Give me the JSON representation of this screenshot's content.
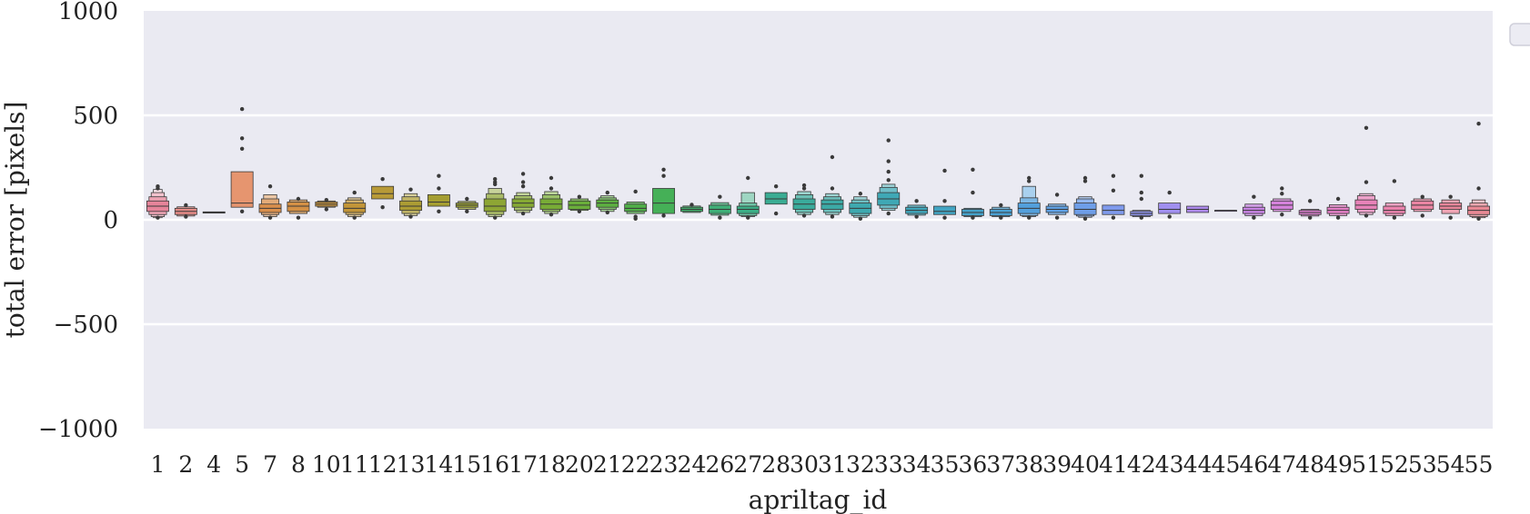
{
  "chart_data": {
    "type": "boxen",
    "xlabel": "apriltag_id",
    "ylabel": "total error [pixels]",
    "ylim": [
      -1000,
      1000
    ],
    "yticks": [
      -1000,
      -500,
      0,
      500,
      1000
    ],
    "ytick_labels": [
      "−1000",
      "−500",
      "0",
      "500",
      "1000"
    ],
    "grid": true,
    "legend": "top-right, empty",
    "background": "#eaeaf2",
    "categories": [
      "1",
      "2",
      "4",
      "5",
      "7",
      "8",
      "10",
      "11",
      "12",
      "13",
      "14",
      "15",
      "16",
      "17",
      "18",
      "20",
      "21",
      "22",
      "23",
      "24",
      "26",
      "27",
      "28",
      "30",
      "31",
      "32",
      "33",
      "34",
      "35",
      "36",
      "37",
      "38",
      "39",
      "40",
      "41",
      "42",
      "43",
      "44",
      "45",
      "46",
      "47",
      "48",
      "49",
      "51",
      "52",
      "53",
      "54",
      "55"
    ],
    "series": [
      {
        "category": "1",
        "color": "#e5849a",
        "median": 65,
        "q1": 40,
        "q3": 90,
        "outer": [
          [
            25,
            110
          ],
          [
            15,
            130
          ],
          [
            10,
            145
          ]
        ],
        "outliers": [
          160,
          150,
          10
        ]
      },
      {
        "category": "2",
        "color": "#e48a86",
        "median": 40,
        "q1": 25,
        "q3": 55,
        "outer": [
          [
            18,
            62
          ]
        ],
        "outliers": [
          70,
          15
        ]
      },
      {
        "category": "4",
        "color": "#d98f5c",
        "median": 35,
        "q1": 32,
        "q3": 38,
        "outer": [],
        "outliers": []
      },
      {
        "category": "5",
        "color": "#e6956f",
        "median": 80,
        "q1": 60,
        "q3": 230,
        "outer": [],
        "outliers": [
          530,
          390,
          340,
          40
        ]
      },
      {
        "category": "7",
        "color": "#d98f4c",
        "median": 55,
        "q1": 35,
        "q3": 75,
        "outer": [
          [
            25,
            100
          ],
          [
            15,
            120
          ]
        ],
        "outliers": [
          160,
          10
        ]
      },
      {
        "category": "8",
        "color": "#d49045",
        "median": 65,
        "q1": 40,
        "q3": 85,
        "outer": [
          [
            30,
            95
          ]
        ],
        "outliers": [
          100,
          10
        ]
      },
      {
        "category": "10",
        "color": "#c8953c",
        "median": 75,
        "q1": 65,
        "q3": 85,
        "outer": [
          [
            60,
            90
          ]
        ],
        "outliers": [
          95,
          50
        ]
      },
      {
        "category": "11",
        "color": "#c29538",
        "median": 55,
        "q1": 35,
        "q3": 80,
        "outer": [
          [
            25,
            95
          ],
          [
            15,
            105
          ]
        ],
        "outliers": [
          130,
          10
        ]
      },
      {
        "category": "12",
        "color": "#b89a37",
        "median": 125,
        "q1": 100,
        "q3": 160,
        "outer": [],
        "outliers": [
          195,
          60
        ]
      },
      {
        "category": "13",
        "color": "#ac9c34",
        "median": 65,
        "q1": 45,
        "q3": 90,
        "outer": [
          [
            30,
            110
          ],
          [
            20,
            125
          ]
        ],
        "outliers": [
          145,
          15
        ]
      },
      {
        "category": "14",
        "color": "#a59e32",
        "median": 85,
        "q1": 65,
        "q3": 120,
        "outer": [],
        "outliers": [
          210,
          150,
          40
        ]
      },
      {
        "category": "15",
        "color": "#9ba134",
        "median": 70,
        "q1": 60,
        "q3": 80,
        "outer": [
          [
            50,
            88
          ]
        ],
        "outliers": [
          100,
          40
        ]
      },
      {
        "category": "16",
        "color": "#8ea634",
        "median": 65,
        "q1": 40,
        "q3": 100,
        "outer": [
          [
            25,
            125
          ],
          [
            15,
            150
          ]
        ],
        "outliers": [
          195,
          180,
          170,
          10
        ]
      },
      {
        "category": "17",
        "color": "#86a934",
        "median": 80,
        "q1": 60,
        "q3": 100,
        "outer": [
          [
            45,
            115
          ],
          [
            35,
            130
          ]
        ],
        "outliers": [
          220,
          180,
          160,
          30
        ]
      },
      {
        "category": "18",
        "color": "#78ac36",
        "median": 75,
        "q1": 50,
        "q3": 100,
        "outer": [
          [
            40,
            120
          ],
          [
            30,
            135
          ]
        ],
        "outliers": [
          200,
          150,
          25
        ]
      },
      {
        "category": "20",
        "color": "#6aae3a",
        "median": 70,
        "q1": 50,
        "q3": 90,
        "outer": [
          [
            45,
            100
          ]
        ],
        "outliers": [
          110,
          40
        ]
      },
      {
        "category": "21",
        "color": "#5db041",
        "median": 80,
        "q1": 60,
        "q3": 95,
        "outer": [
          [
            50,
            105
          ],
          [
            40,
            115
          ]
        ],
        "outliers": [
          130,
          35
        ]
      },
      {
        "category": "22",
        "color": "#50b049",
        "median": 55,
        "q1": 40,
        "q3": 75,
        "outer": [
          [
            30,
            85
          ]
        ],
        "outliers": [
          135,
          15,
          5
        ]
      },
      {
        "category": "23",
        "color": "#45b057",
        "median": 80,
        "q1": 30,
        "q3": 150,
        "outer": [],
        "outliers": [
          240,
          210,
          20
        ]
      },
      {
        "category": "24",
        "color": "#40ae6a",
        "median": 50,
        "q1": 40,
        "q3": 60,
        "outer": [
          [
            35,
            66
          ]
        ],
        "outliers": [
          72
        ]
      },
      {
        "category": "26",
        "color": "#3fae77",
        "median": 50,
        "q1": 30,
        "q3": 70,
        "outer": [
          [
            22,
            82
          ]
        ],
        "outliers": [
          110,
          10
        ]
      },
      {
        "category": "27",
        "color": "#3cad85",
        "median": 50,
        "q1": 30,
        "q3": 65,
        "outer": [
          [
            20,
            80
          ],
          [
            15,
            130
          ]
        ],
        "outliers": [
          200,
          10
        ]
      },
      {
        "category": "28",
        "color": "#3aac93",
        "median": 100,
        "q1": 75,
        "q3": 130,
        "outer": [],
        "outliers": [
          160,
          30
        ]
      },
      {
        "category": "30",
        "color": "#3aab9c",
        "median": 75,
        "q1": 50,
        "q3": 100,
        "outer": [
          [
            35,
            120
          ],
          [
            25,
            135
          ]
        ],
        "outliers": [
          165,
          150,
          20
        ]
      },
      {
        "category": "31",
        "color": "#3caaa6",
        "median": 75,
        "q1": 50,
        "q3": 95,
        "outer": [
          [
            35,
            110
          ],
          [
            25,
            125
          ]
        ],
        "outliers": [
          300,
          150,
          15
        ]
      },
      {
        "category": "32",
        "color": "#3ea9af",
        "median": 55,
        "q1": 30,
        "q3": 80,
        "outer": [
          [
            20,
            95
          ],
          [
            12,
            110
          ]
        ],
        "outliers": [
          125,
          5
        ]
      },
      {
        "category": "33",
        "color": "#3fa8b5",
        "median": 100,
        "q1": 70,
        "q3": 130,
        "outer": [
          [
            55,
            155
          ],
          [
            45,
            170
          ]
        ],
        "outliers": [
          380,
          280,
          230,
          190,
          30
        ]
      },
      {
        "category": "34",
        "color": "#40a6bb",
        "median": 45,
        "q1": 30,
        "q3": 60,
        "outer": [
          [
            22,
            70
          ]
        ],
        "outliers": [
          90,
          15
        ]
      },
      {
        "category": "35",
        "color": "#42a4c2",
        "median": 40,
        "q1": 25,
        "q3": 65,
        "outer": [],
        "outliers": [
          235,
          90,
          10
        ]
      },
      {
        "category": "36",
        "color": "#45a2ca",
        "median": 35,
        "q1": 20,
        "q3": 50,
        "outer": [
          [
            15,
            55
          ]
        ],
        "outliers": [
          240,
          130,
          10
        ]
      },
      {
        "category": "37",
        "color": "#4aa0d2",
        "median": 35,
        "q1": 20,
        "q3": 50,
        "outer": [
          [
            15,
            60
          ]
        ],
        "outliers": [
          70,
          10
        ]
      },
      {
        "category": "38",
        "color": "#53a0dc",
        "median": 55,
        "q1": 30,
        "q3": 80,
        "outer": [
          [
            20,
            105
          ],
          [
            15,
            160
          ]
        ],
        "outliers": [
          200,
          185,
          10
        ]
      },
      {
        "category": "39",
        "color": "#5fa0e3",
        "median": 50,
        "q1": 35,
        "q3": 65,
        "outer": [
          [
            25,
            75
          ]
        ],
        "outliers": [
          120,
          10
        ]
      },
      {
        "category": "40",
        "color": "#6e9ee8",
        "median": 50,
        "q1": 25,
        "q3": 80,
        "outer": [
          [
            18,
            100
          ],
          [
            12,
            110
          ]
        ],
        "outliers": [
          200,
          185,
          5
        ]
      },
      {
        "category": "41",
        "color": "#7f9aec",
        "median": 45,
        "q1": 25,
        "q3": 70,
        "outer": [],
        "outliers": [
          210,
          140,
          10
        ]
      },
      {
        "category": "42",
        "color": "#8f95ed",
        "median": 30,
        "q1": 20,
        "q3": 40,
        "outer": [
          [
            15,
            45
          ]
        ],
        "outliers": [
          210,
          130,
          100,
          10
        ]
      },
      {
        "category": "43",
        "color": "#a08fee",
        "median": 50,
        "q1": 30,
        "q3": 80,
        "outer": [],
        "outliers": [
          130,
          15
        ]
      },
      {
        "category": "44",
        "color": "#ae8aee",
        "median": 50,
        "q1": 35,
        "q3": 65,
        "outer": [],
        "outliers": []
      },
      {
        "category": "45",
        "color": "#bb86ec",
        "median": 45,
        "q1": 45,
        "q3": 45,
        "outer": [],
        "outliers": []
      },
      {
        "category": "46",
        "color": "#c884e4",
        "median": 45,
        "q1": 30,
        "q3": 60,
        "outer": [
          [
            20,
            75
          ]
        ],
        "outliers": [
          110,
          10
        ]
      },
      {
        "category": "47",
        "color": "#d582dc",
        "median": 70,
        "q1": 50,
        "q3": 90,
        "outer": [
          [
            40,
            100
          ]
        ],
        "outliers": [
          150,
          125,
          25
        ]
      },
      {
        "category": "48",
        "color": "#de80d2",
        "median": 35,
        "q1": 25,
        "q3": 45,
        "outer": [
          [
            18,
            50
          ]
        ],
        "outliers": [
          90,
          10
        ]
      },
      {
        "category": "49",
        "color": "#e47fc6",
        "median": 45,
        "q1": 30,
        "q3": 60,
        "outer": [
          [
            20,
            72
          ]
        ],
        "outliers": [
          100,
          10
        ]
      },
      {
        "category": "51",
        "color": "#e882b8",
        "median": 70,
        "q1": 50,
        "q3": 95,
        "outer": [
          [
            35,
            115
          ],
          [
            25,
            125
          ]
        ],
        "outliers": [
          440,
          180,
          20
        ]
      },
      {
        "category": "52",
        "color": "#ea83ad",
        "median": 45,
        "q1": 30,
        "q3": 65,
        "outer": [
          [
            20,
            80
          ]
        ],
        "outliers": [
          185,
          10
        ]
      },
      {
        "category": "53",
        "color": "#ea85a3",
        "median": 70,
        "q1": 50,
        "q3": 90,
        "outer": [
          [
            40,
            100
          ]
        ],
        "outliers": [
          110,
          20
        ]
      },
      {
        "category": "54",
        "color": "#ea869b",
        "median": 65,
        "q1": 50,
        "q3": 80,
        "outer": [
          [
            30,
            95
          ]
        ],
        "outliers": [
          110,
          10
        ]
      },
      {
        "category": "55",
        "color": "#e88994",
        "median": 45,
        "q1": 25,
        "q3": 65,
        "outer": [
          [
            15,
            80
          ],
          [
            10,
            95
          ]
        ],
        "outliers": [
          460,
          150,
          5
        ]
      }
    ]
  }
}
